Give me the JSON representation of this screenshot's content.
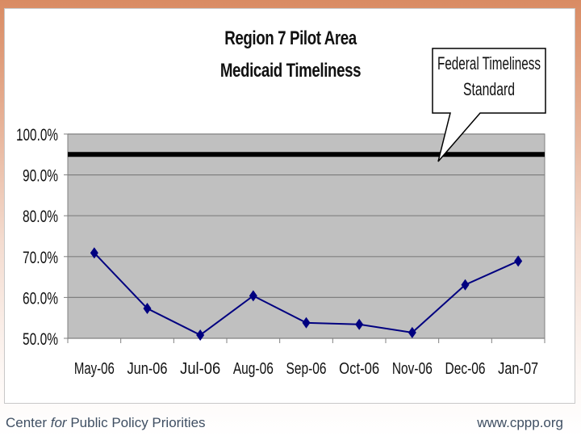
{
  "title_line1": "Region 7 Pilot Area",
  "title_line2": "Medicaid Timeliness",
  "callout": {
    "line1": "Federal Timeliness",
    "line2": "Standard"
  },
  "footer": {
    "left_pre": "Center ",
    "left_italic": "for",
    "left_post": " Public Policy Priorities",
    "right": "www.cppp.org"
  },
  "colors": {
    "plot_background": "#c0c0c0",
    "series_line": "#000080",
    "standard_line": "#000000",
    "slide_accent": "#d98b63"
  },
  "chart_data": {
    "type": "line",
    "title": "Region 7 Pilot Area Medicaid Timeliness",
    "xlabel": "",
    "ylabel": "",
    "categories": [
      "May-06",
      "Jun-06",
      "Jul-06",
      "Aug-06",
      "Sep-06",
      "Oct-06",
      "Nov-06",
      "Dec-06",
      "Jan-07"
    ],
    "series": [
      {
        "name": "Medicaid Timeliness",
        "values": [
          70.9,
          57.3,
          50.8,
          60.4,
          53.8,
          53.4,
          51.4,
          63.1,
          68.9
        ],
        "marker": "diamond",
        "color": "#000080"
      }
    ],
    "reference_lines": [
      {
        "name": "Federal Timeliness Standard",
        "value": 95.0,
        "color": "#000000"
      }
    ],
    "y_ticks": [
      "50.0%",
      "60.0%",
      "70.0%",
      "80.0%",
      "90.0%",
      "100.0%"
    ],
    "ylim": [
      50,
      100
    ],
    "grid": true,
    "legend": "none",
    "annotations": [
      "Federal Timeliness Standard"
    ]
  }
}
